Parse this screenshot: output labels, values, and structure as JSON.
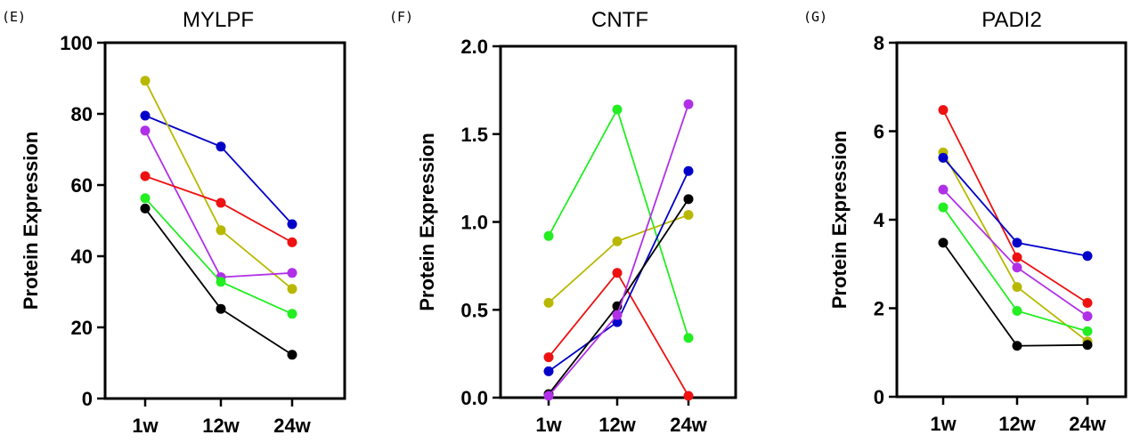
{
  "chart_data": [
    {
      "panel": "(E)",
      "type": "line",
      "title": "MYLPF",
      "ylabel": "Protein Expression",
      "xlabel": "",
      "categories": [
        "1w",
        "12w",
        "24w"
      ],
      "ylim": [
        0,
        100
      ],
      "yticks": [
        0,
        20,
        40,
        60,
        80,
        100
      ],
      "ytick_labels": [
        "0",
        "20",
        "40",
        "60",
        "80",
        "100"
      ],
      "series": [
        {
          "color": "#0000c8",
          "values": [
            79.5,
            70.8,
            49
          ]
        },
        {
          "color": "#b8b800",
          "values": [
            89.3,
            47.3,
            30.8
          ]
        },
        {
          "color": "#b030e8",
          "values": [
            75.3,
            34.1,
            35.3
          ]
        },
        {
          "color": "#ee1111",
          "values": [
            62.5,
            55,
            43.9
          ]
        },
        {
          "color": "#22ee22",
          "values": [
            56.3,
            32.8,
            23.8
          ]
        },
        {
          "color": "#000000",
          "values": [
            53.4,
            25.2,
            12.3
          ]
        }
      ]
    },
    {
      "panel": "(F)",
      "type": "line",
      "title": "CNTF",
      "ylabel": "Protein Expression",
      "xlabel": "",
      "categories": [
        "1w",
        "12w",
        "24w"
      ],
      "ylim": [
        0,
        2.0
      ],
      "yticks": [
        0,
        0.5,
        1.0,
        1.5,
        2.0
      ],
      "ytick_labels": [
        "0.0",
        "0.5",
        "1.0",
        "1.5",
        "2.0"
      ],
      "series": [
        {
          "color": "#22ee22",
          "values": [
            0.92,
            1.64,
            0.34
          ]
        },
        {
          "color": "#b8b800",
          "values": [
            0.54,
            0.89,
            1.04
          ]
        },
        {
          "color": "#ee1111",
          "values": [
            0.23,
            0.71,
            0.01
          ]
        },
        {
          "color": "#0000c8",
          "values": [
            0.15,
            0.43,
            1.29
          ]
        },
        {
          "color": "#000000",
          "values": [
            0.02,
            0.52,
            1.13
          ]
        },
        {
          "color": "#b030e8",
          "values": [
            0.01,
            0.47,
            1.67
          ]
        }
      ]
    },
    {
      "panel": "(G)",
      "type": "line",
      "title": "PADI2",
      "ylabel": "Protein Expression",
      "xlabel": "",
      "categories": [
        "1w",
        "12w",
        "24w"
      ],
      "ylim": [
        0,
        8
      ],
      "yticks": [
        0,
        2,
        4,
        6,
        8
      ],
      "ytick_labels": [
        "0",
        "2",
        "4",
        "6",
        "8"
      ],
      "series": [
        {
          "color": "#ee1111",
          "values": [
            6.48,
            3.15,
            2.12
          ]
        },
        {
          "color": "#b8b800",
          "values": [
            5.52,
            2.48,
            1.25
          ]
        },
        {
          "color": "#0000c8",
          "values": [
            5.4,
            3.48,
            3.18
          ]
        },
        {
          "color": "#b030e8",
          "values": [
            4.68,
            2.92,
            1.82
          ]
        },
        {
          "color": "#22ee22",
          "values": [
            4.28,
            1.94,
            1.48
          ]
        },
        {
          "color": "#000000",
          "values": [
            3.48,
            1.15,
            1.17
          ]
        }
      ]
    }
  ]
}
